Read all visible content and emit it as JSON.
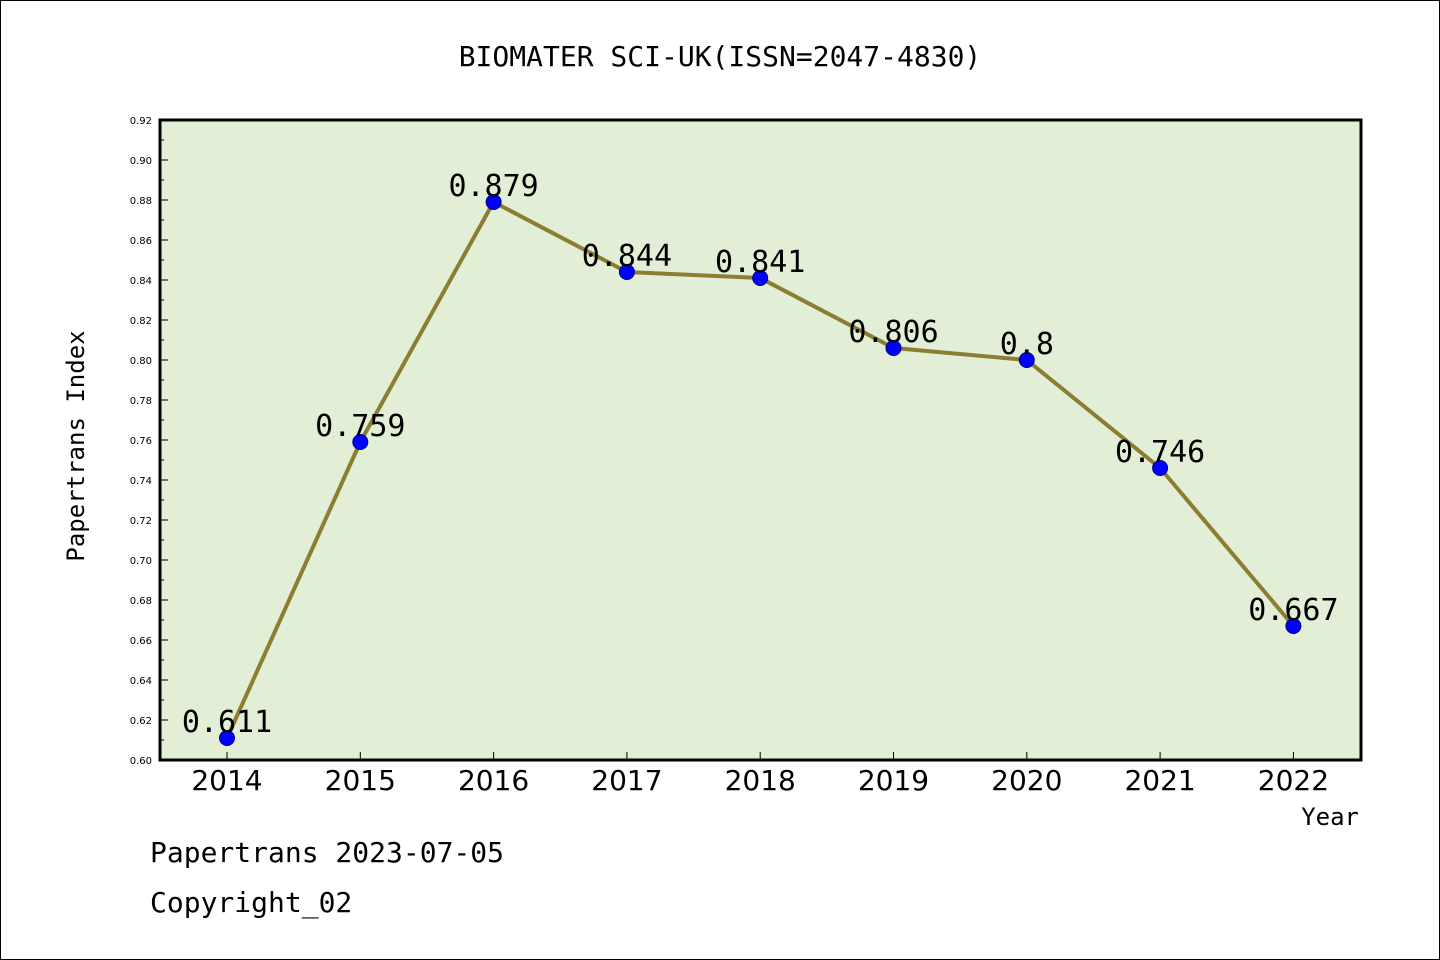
{
  "chart_data": {
    "type": "line",
    "title": "BIOMATER SCI-UK(ISSN=2047-4830)",
    "xlabel": "Year",
    "ylabel": "Papertrans Index",
    "categories": [
      "2014",
      "2015",
      "2016",
      "2017",
      "2018",
      "2019",
      "2020",
      "2021",
      "2022"
    ],
    "values": [
      0.611,
      0.759,
      0.879,
      0.844,
      0.841,
      0.806,
      0.8,
      0.746,
      0.667
    ],
    "data_labels": [
      "0.611",
      "0.759",
      "0.879",
      "0.844",
      "0.841",
      "0.806",
      "0.8",
      "0.746",
      "0.667"
    ],
    "ylim": [
      0.6,
      0.92
    ],
    "yticks": [
      "0.60",
      "0.62",
      "0.64",
      "0.66",
      "0.68",
      "0.70",
      "0.72",
      "0.74",
      "0.76",
      "0.78",
      "0.80",
      "0.82",
      "0.84",
      "0.86",
      "0.88",
      "0.90",
      "0.92"
    ],
    "grid": false,
    "colors": {
      "plot_bg": "#e2efd6",
      "line": "#8b7d32",
      "marker": "#0000ff"
    }
  },
  "footer": {
    "line1": "Papertrans 2023-07-05",
    "line2": "Copyright_02"
  }
}
